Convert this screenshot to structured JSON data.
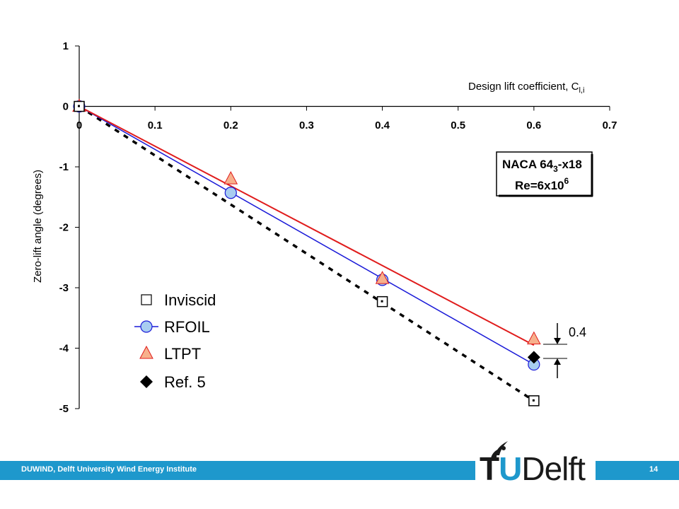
{
  "chart_data": {
    "type": "line",
    "xlabel_prefix": "Design lift coefficient, C",
    "xlabel_sub": "l,i",
    "ylabel": "Zero-lift angle (degrees)",
    "xlim": [
      0,
      0.7
    ],
    "ylim": [
      -5,
      1
    ],
    "x_ticks": [
      "0",
      "0.1",
      "0.2",
      "0.3",
      "0.4",
      "0.5",
      "0.6",
      "0.7"
    ],
    "y_ticks": [
      "1",
      "0",
      "-1",
      "-2",
      "-3",
      "-4",
      "-5"
    ],
    "series": [
      {
        "name": "Inviscid",
        "marker": "square",
        "line": "dashed",
        "color": "#000000",
        "x": [
          0,
          0.4,
          0.6
        ],
        "y": [
          0,
          -3.23,
          -4.87
        ],
        "fit": {
          "x": [
            0,
            0.6
          ],
          "y": [
            0,
            -4.87
          ]
        }
      },
      {
        "name": "RFOIL",
        "marker": "circle",
        "line": "solid",
        "color": "#1a1ad8",
        "fill": "#a8cdf0",
        "x": [
          0,
          0.2,
          0.4,
          0.6
        ],
        "y": [
          0,
          -1.43,
          -2.87,
          -4.27
        ],
        "fit": {
          "x": [
            0,
            0.6
          ],
          "y": [
            0,
            -4.27
          ]
        }
      },
      {
        "name": "LTPT",
        "marker": "triangle",
        "line": "solid",
        "color": "#e01c1c",
        "fill": "#f7b08c",
        "x": [
          0,
          0.2,
          0.4,
          0.6
        ],
        "y": [
          0,
          -1.2,
          -2.85,
          -3.85
        ],
        "fit": {
          "x": [
            0,
            0.6
          ],
          "y": [
            0,
            -3.95
          ]
        }
      },
      {
        "name": "Ref. 5",
        "marker": "diamond",
        "line": "none",
        "color": "#000000",
        "x": [
          0.6
        ],
        "y": [
          -4.15
        ]
      }
    ],
    "info_box": {
      "line1_a": "NACA 64",
      "line1_sub": "3",
      "line1_b": "-x18",
      "line2_a": "Re=6x10",
      "line2_sup": "6"
    },
    "annotation": {
      "text": "0.4"
    }
  },
  "footer": {
    "text": "DUWIND, Delft University Wind Energy Institute",
    "page": "14",
    "logo_t": "T",
    "logo_u": "U",
    "logo_rest": "Delft"
  }
}
